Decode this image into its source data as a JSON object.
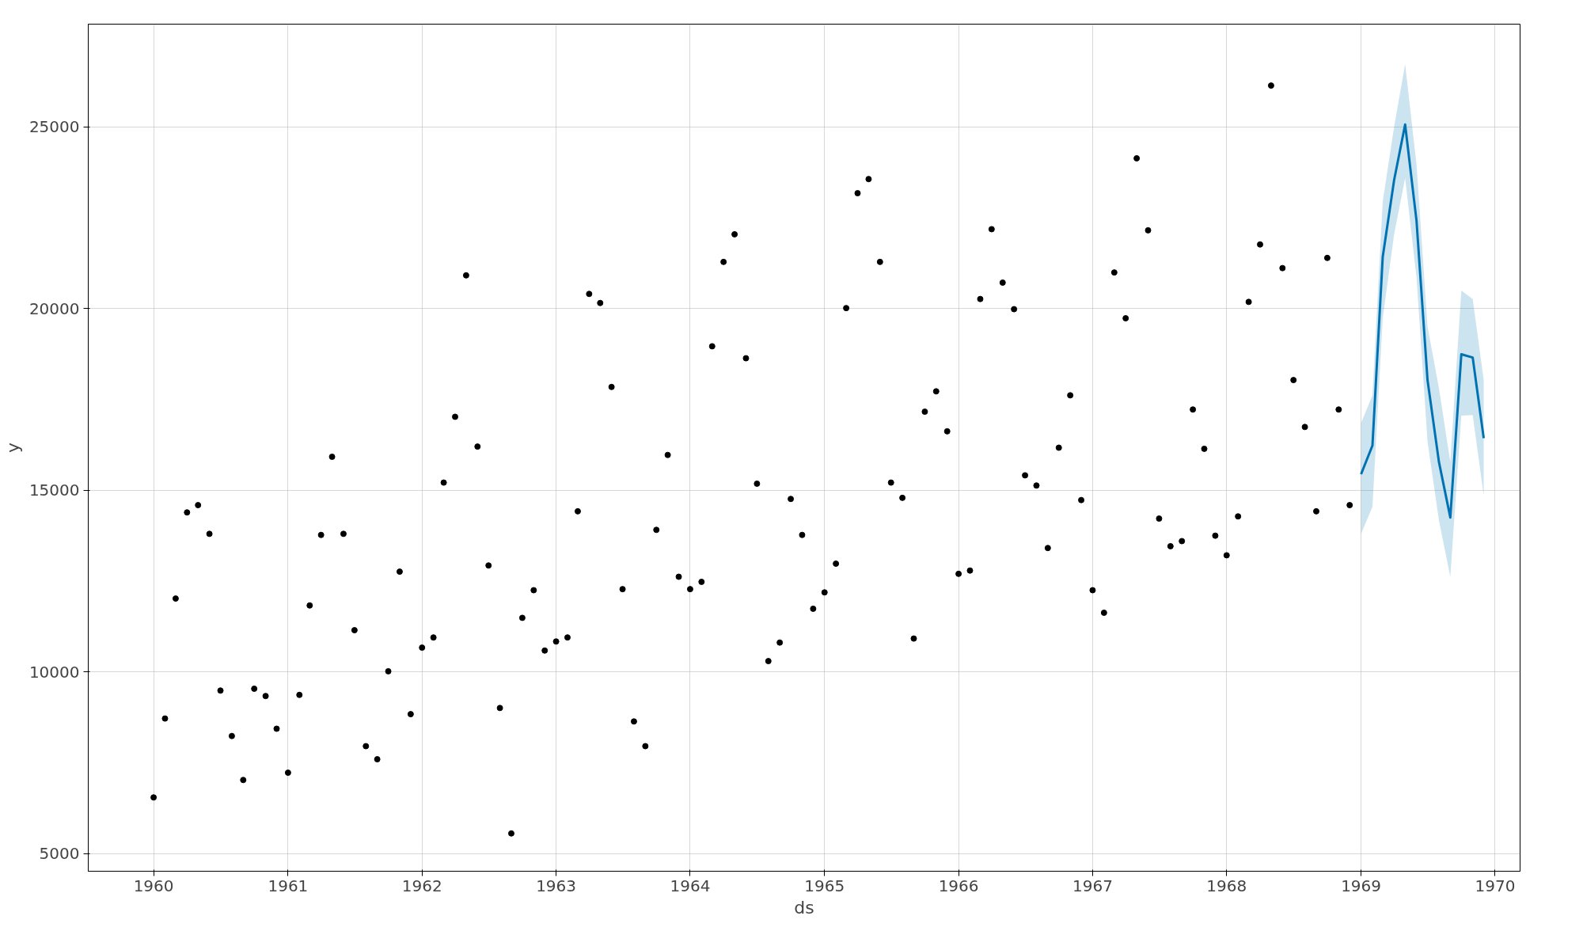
{
  "chart_data": {
    "type": "scatter",
    "xlabel": "ds",
    "ylabel": "y",
    "grid": true,
    "marker": "circle",
    "xlim": [
      "1959-07-07",
      "1970-03-10"
    ],
    "ylim": [
      4520,
      27820
    ],
    "xticks": [
      "1960",
      "1961",
      "1962",
      "1963",
      "1964",
      "1965",
      "1966",
      "1967",
      "1968",
      "1969",
      "1970"
    ],
    "yticks": [
      5000,
      10000,
      15000,
      20000,
      25000
    ],
    "series": [
      {
        "color": "#000000",
        "x": [
          "1960-01",
          "1960-02",
          "1960-03",
          "1960-04",
          "1960-05",
          "1960-06",
          "1960-07",
          "1960-08",
          "1960-09",
          "1960-10",
          "1960-11",
          "1960-12",
          "1961-01",
          "1961-02",
          "1961-03",
          "1961-04",
          "1961-05",
          "1961-06",
          "1961-07",
          "1961-08",
          "1961-09",
          "1961-10",
          "1961-11",
          "1961-12",
          "1962-01",
          "1962-02",
          "1962-03",
          "1962-04",
          "1962-05",
          "1962-06",
          "1962-07",
          "1962-08",
          "1962-09",
          "1962-10",
          "1962-11",
          "1962-12",
          "1963-01",
          "1963-02",
          "1963-03",
          "1963-04",
          "1963-05",
          "1963-06",
          "1963-07",
          "1963-08",
          "1963-09",
          "1963-10",
          "1963-11",
          "1963-12",
          "1964-01",
          "1964-02",
          "1964-03",
          "1964-04",
          "1964-05",
          "1964-06",
          "1964-07",
          "1964-08",
          "1964-09",
          "1964-10",
          "1964-11",
          "1964-12",
          "1965-01",
          "1965-02",
          "1965-03",
          "1965-04",
          "1965-05",
          "1965-06",
          "1965-07",
          "1965-08",
          "1965-09",
          "1965-10",
          "1965-11",
          "1965-12",
          "1966-01",
          "1966-02",
          "1966-03",
          "1966-04",
          "1966-05",
          "1966-06",
          "1966-07",
          "1966-08",
          "1966-09",
          "1966-10",
          "1966-11",
          "1966-12",
          "1967-01",
          "1967-02",
          "1967-03",
          "1967-04",
          "1967-05",
          "1967-06",
          "1967-07",
          "1967-08",
          "1967-09",
          "1967-10",
          "1967-11",
          "1967-12",
          "1968-01",
          "1968-02",
          "1968-03",
          "1968-04",
          "1968-05",
          "1968-06",
          "1968-07",
          "1968-08",
          "1968-09",
          "1968-10",
          "1968-11",
          "1968-12"
        ],
        "values": [
          6550,
          8720,
          12020,
          14390,
          14590,
          13800,
          9490,
          8240,
          7030,
          9540,
          9340,
          8440,
          7230,
          9370,
          11830,
          13770,
          15920,
          13800,
          11150,
          7960,
          7600,
          10020,
          12760,
          8840,
          10670,
          10950,
          15210,
          17020,
          20910,
          16200,
          12930,
          9010,
          5560,
          11490,
          12250,
          10590,
          10840,
          10950,
          14420,
          20400,
          20150,
          17840,
          12280,
          8640,
          7960,
          13910,
          15970,
          12620,
          12280,
          12480,
          18960,
          21280,
          22040,
          18630,
          15180,
          10300,
          10810,
          14760,
          13770,
          11740,
          12190,
          12980,
          20010,
          23170,
          23560,
          21280,
          15210,
          14790,
          10920,
          17160,
          17720,
          16620,
          12700,
          12790,
          20260,
          22180,
          20710,
          19980,
          15410,
          15130,
          13410,
          16170,
          17610,
          14730,
          12250,
          11630,
          20990,
          19730,
          24130,
          22150,
          14220,
          13460,
          13600,
          17220,
          16140,
          13750,
          13210,
          14280,
          20180,
          21760,
          26130,
          21110,
          18030,
          16740,
          14420,
          21390,
          17220,
          14590
        ]
      },
      {
        "type": "line",
        "marker": "none",
        "color": "#0072b2",
        "x": [
          "1969-01",
          "1969-02",
          "1969-03",
          "1969-04",
          "1969-05",
          "1969-06",
          "1969-07",
          "1969-08",
          "1969-09",
          "1969-10",
          "1969-11",
          "1969-12"
        ],
        "values": [
          15440,
          16230,
          21420,
          23530,
          25060,
          22410,
          18030,
          15780,
          14250,
          18740,
          18650,
          16430
        ],
        "lower": [
          13800,
          14540,
          19730,
          22040,
          23590,
          20850,
          16340,
          14170,
          12620,
          17050,
          17070,
          14850
        ],
        "upper": [
          16850,
          17610,
          22940,
          25000,
          26720,
          23960,
          19500,
          17810,
          15780,
          20490,
          20260,
          18030
        ]
      }
    ]
  }
}
